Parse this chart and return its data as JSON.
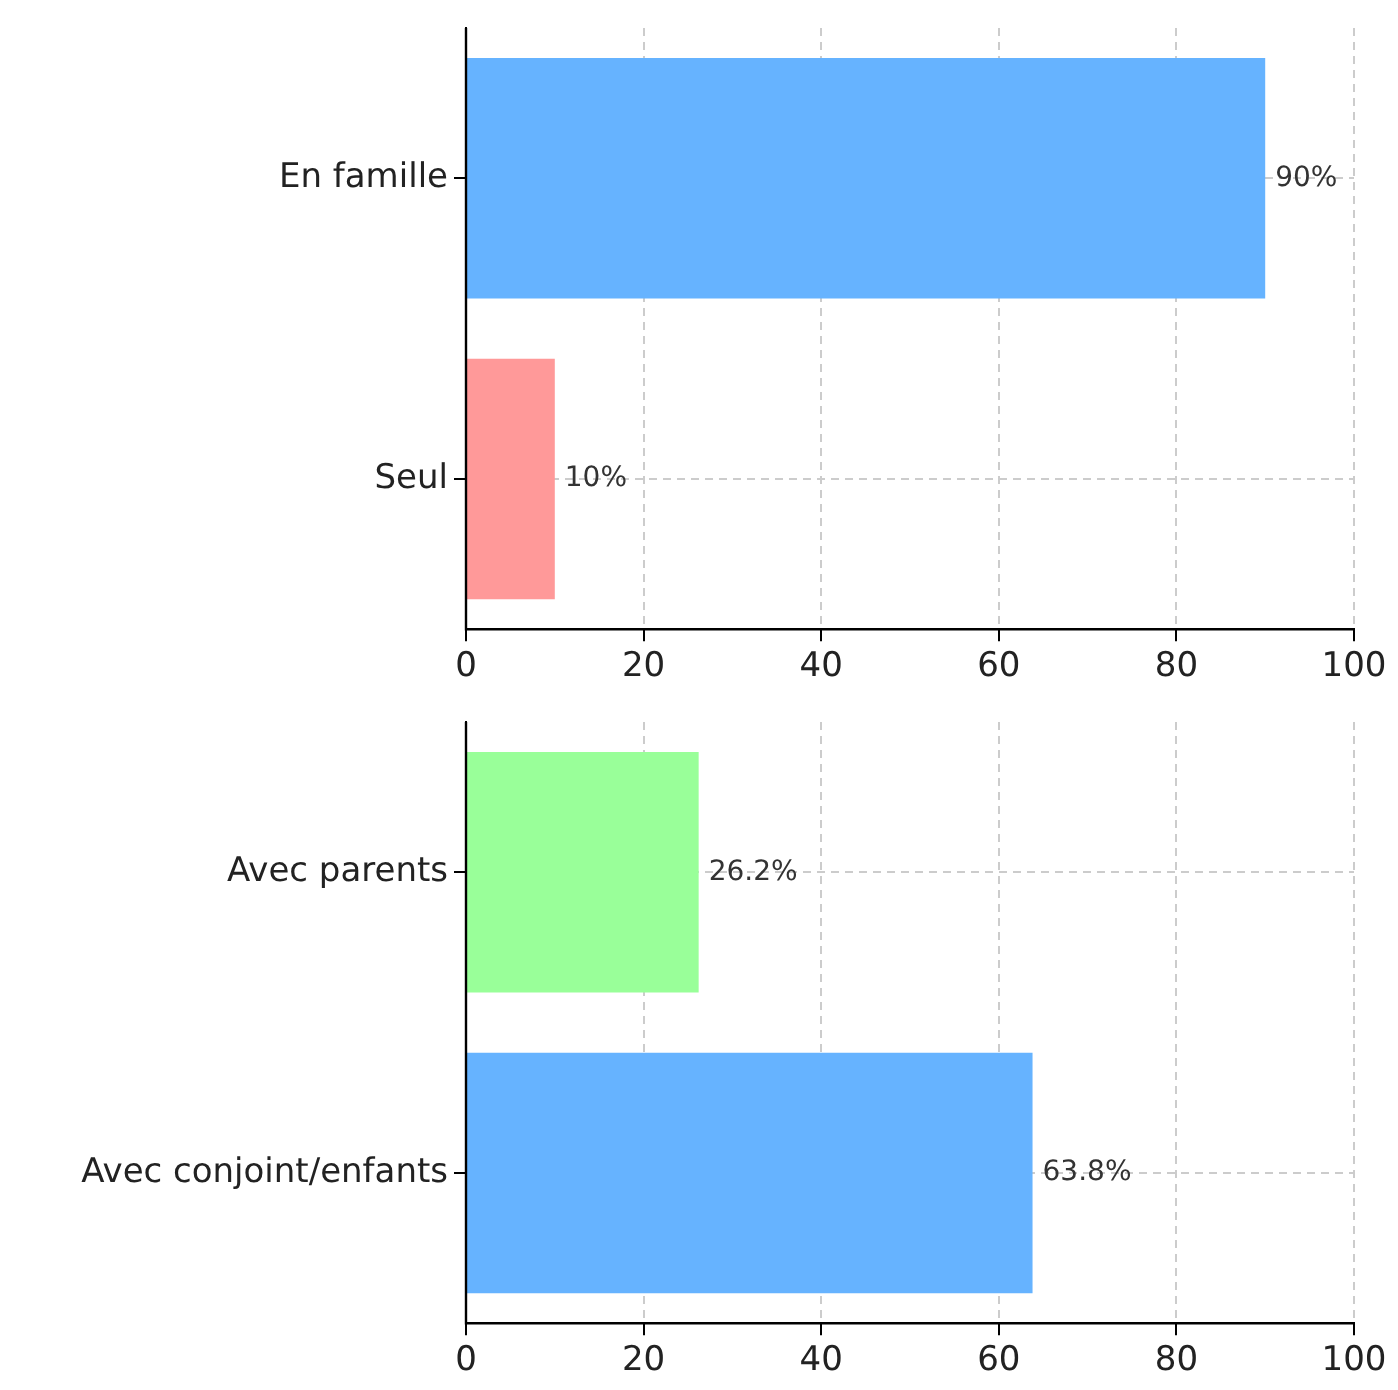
{
  "chart_data": [
    {
      "type": "bar",
      "orientation": "horizontal",
      "categories": [
        "En famille",
        "Seul"
      ],
      "values": [
        90,
        10
      ],
      "colors": [
        "#66b3ff",
        "#ff9999"
      ],
      "value_labels": [
        "90%",
        "10%"
      ],
      "xlim": [
        0,
        100
      ],
      "xticks": [
        0,
        20,
        40,
        60,
        80,
        100
      ],
      "grid": true,
      "legend": false
    },
    {
      "type": "bar",
      "orientation": "horizontal",
      "categories": [
        "Avec parents",
        "Avec conjoint/enfants"
      ],
      "values": [
        26.2,
        63.8
      ],
      "colors": [
        "#99ff99",
        "#66b3ff"
      ],
      "value_labels": [
        "26.2%",
        "63.8%"
      ],
      "xlim": [
        0,
        100
      ],
      "xticks": [
        0,
        20,
        40,
        60,
        80,
        100
      ],
      "grid": true,
      "legend": false
    }
  ]
}
